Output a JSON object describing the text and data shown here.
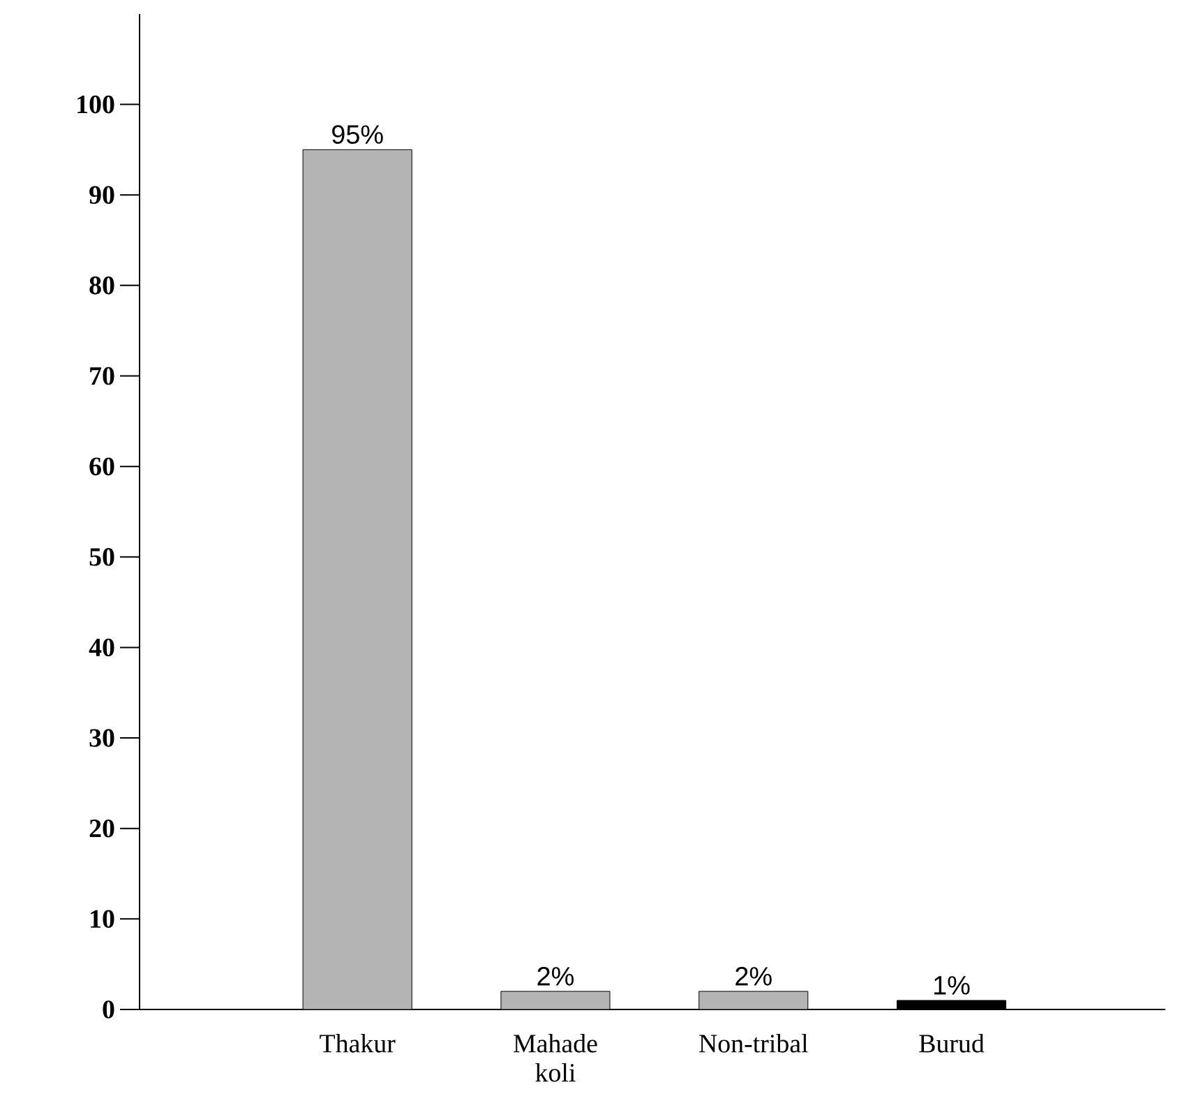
{
  "chart_data": {
    "type": "bar",
    "categories": [
      "Thakur",
      "Mahade koli",
      "Non-tribal",
      "Burud"
    ],
    "values": [
      95,
      2,
      2,
      1
    ],
    "value_labels": [
      "95%",
      "2%",
      "2%",
      "1%"
    ],
    "colors": [
      "#b4b4b4",
      "#b4b4b4",
      "#b4b4b4",
      "#000000"
    ],
    "ylim": [
      0,
      110
    ],
    "yticks": [
      0,
      10,
      20,
      30,
      40,
      50,
      60,
      70,
      80,
      90,
      100
    ],
    "grid": false
  }
}
